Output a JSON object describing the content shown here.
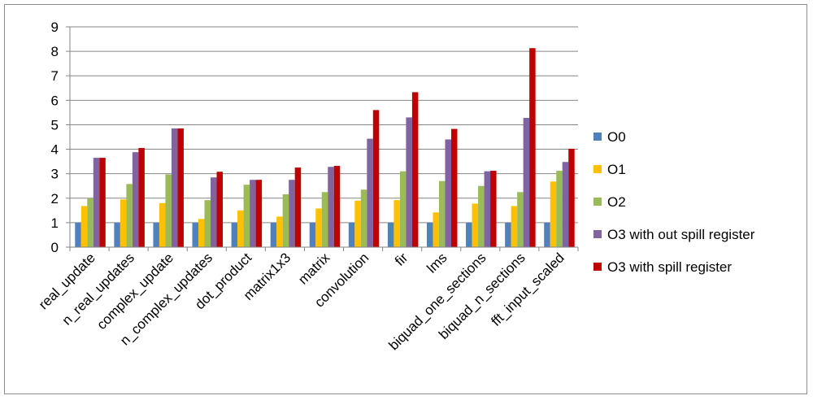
{
  "chart_data": {
    "type": "bar",
    "title": "",
    "xlabel": "",
    "ylabel": "",
    "ylim": [
      0,
      9
    ],
    "yticks": [
      0,
      1,
      2,
      3,
      4,
      5,
      6,
      7,
      8,
      9
    ],
    "grid": true,
    "legend_position": "right",
    "categories": [
      "real_update",
      "n_real_updates",
      "complex_update",
      "n_complex_updates",
      "dot_product",
      "matrix1x3",
      "matrix",
      "convolution",
      "fir",
      "lms",
      "biquad_one_sections",
      "biquad_n_sections",
      "fft_input_scaled"
    ],
    "series": [
      {
        "name": "O0",
        "color": "#4f81bd",
        "values": [
          1,
          1,
          1,
          1,
          1,
          1,
          1,
          1,
          1,
          1,
          1,
          1,
          1
        ]
      },
      {
        "name": "O1",
        "color": "#ffc000",
        "values": [
          1.68,
          1.95,
          1.8,
          1.15,
          1.5,
          1.25,
          1.58,
          1.9,
          1.92,
          1.42,
          1.78,
          1.68,
          2.68
        ]
      },
      {
        "name": "O2",
        "color": "#9bbb59",
        "values": [
          2.0,
          2.58,
          2.97,
          1.92,
          2.55,
          2.16,
          2.25,
          2.35,
          3.1,
          2.7,
          2.5,
          2.25,
          3.12
        ]
      },
      {
        "name": "O3 with out spill register",
        "color": "#8064a2",
        "values": [
          3.65,
          3.88,
          4.85,
          2.85,
          2.75,
          2.75,
          3.28,
          4.43,
          5.3,
          4.4,
          3.1,
          5.28,
          3.48
        ]
      },
      {
        "name": "O3 with spill register",
        "color": "#c00000",
        "values": [
          3.65,
          4.05,
          4.85,
          3.08,
          2.75,
          3.25,
          3.32,
          5.6,
          6.33,
          4.83,
          3.12,
          8.13,
          4.02
        ]
      }
    ]
  }
}
